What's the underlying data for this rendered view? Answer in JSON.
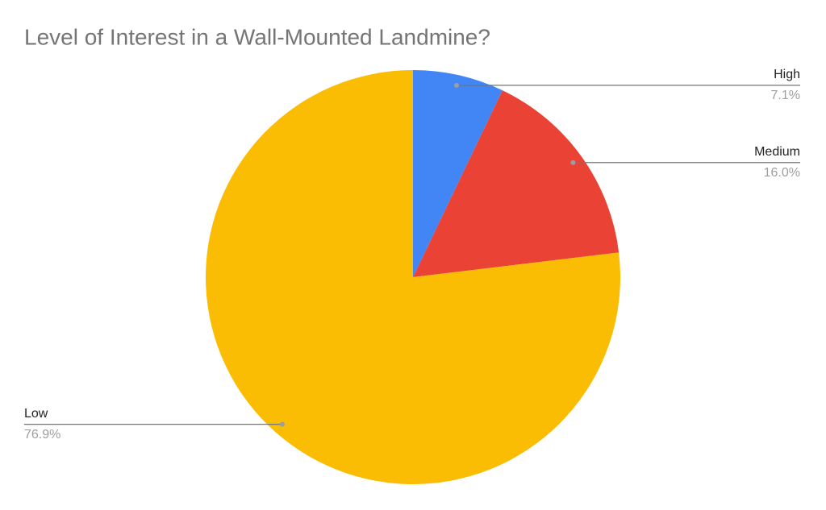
{
  "chart_data": {
    "type": "pie",
    "title": "Level of Interest in a Wall-Mounted Landmine?",
    "categories": [
      "High",
      "Medium",
      "Low"
    ],
    "values": [
      7.1,
      16.0,
      76.9
    ],
    "value_labels": [
      "7.1%",
      "16.0%",
      "76.9%"
    ],
    "colors": [
      "#4285f4",
      "#ea4335",
      "#fbbc04"
    ]
  }
}
